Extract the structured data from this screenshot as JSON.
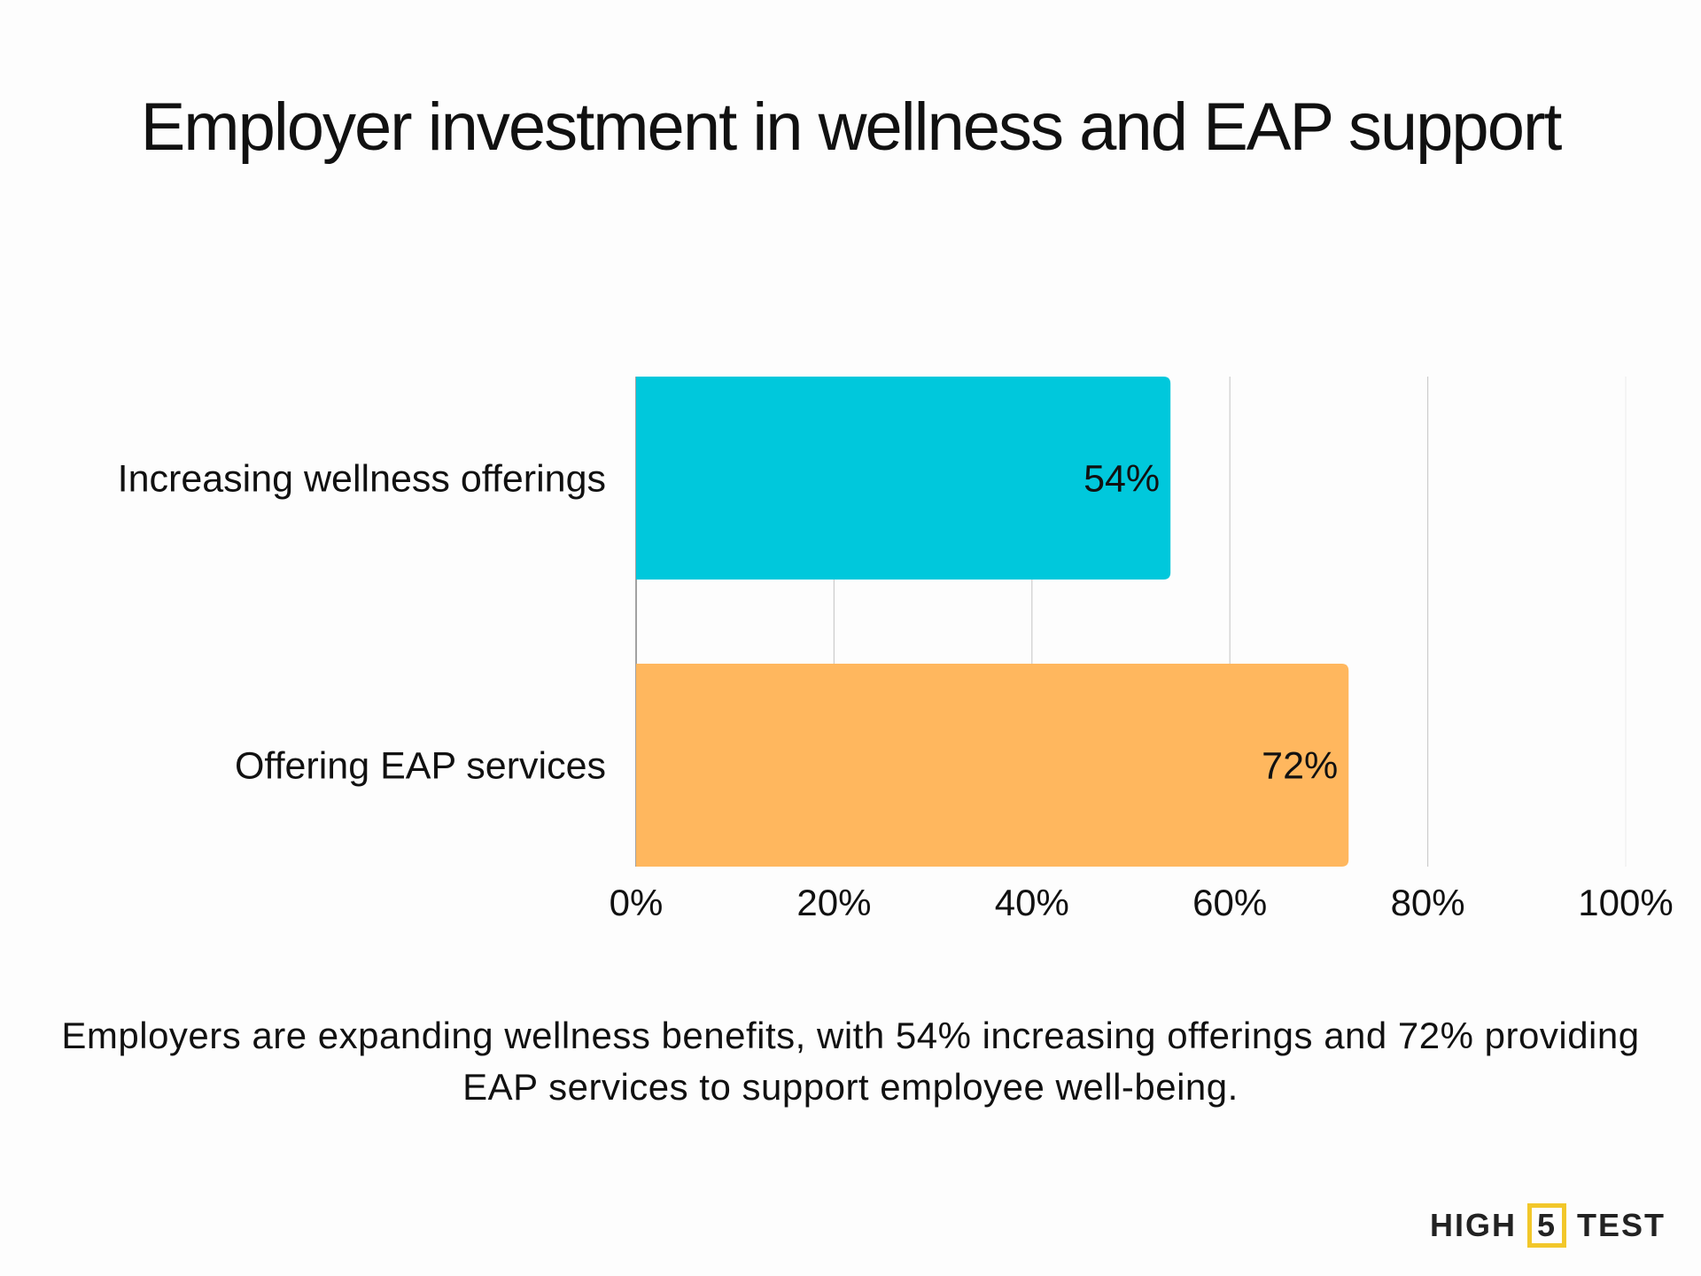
{
  "title": "Employer investment in wellness and EAP support",
  "caption": "Employers are expanding wellness benefits, with 54% increasing offerings and 72% providing EAP services to support employee well-being.",
  "logo": {
    "left": "HIGH",
    "middle": "5",
    "right": "TEST"
  },
  "chart_data": {
    "type": "bar",
    "orientation": "horizontal",
    "title": "Employer investment in wellness and EAP support",
    "categories": [
      "Increasing wellness offerings",
      "Offering EAP services"
    ],
    "values": [
      54,
      72
    ],
    "data_labels": [
      "54%",
      "72%"
    ],
    "colors": [
      "#00c8dc",
      "#ffb75e"
    ],
    "xlim": [
      0,
      100
    ],
    "xticks": [
      "0%",
      "20%",
      "40%",
      "60%",
      "80%",
      "100%"
    ],
    "xlabel": "",
    "ylabel": "",
    "grid": true
  }
}
